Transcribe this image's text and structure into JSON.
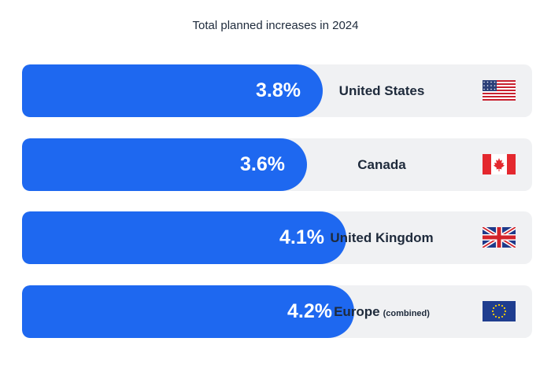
{
  "chart_data": {
    "type": "bar",
    "title": "Total planned increases in 2024",
    "categories": [
      "United States",
      "Canada",
      "United Kingdom",
      "Europe"
    ],
    "values": [
      3.8,
      3.6,
      4.1,
      4.2
    ],
    "value_labels": [
      "3.8%",
      "3.6%",
      "4.1%",
      "4.2%"
    ],
    "category_notes": [
      "",
      "",
      "",
      "(combined)"
    ],
    "flag_icons": [
      "us-flag-icon",
      "canada-flag-icon",
      "uk-flag-icon",
      "eu-flag-icon"
    ],
    "orientation": "horizontal",
    "xlabel": "",
    "ylabel": "",
    "grid": false,
    "legend": "none",
    "colors": {
      "bar": "#1e68f0",
      "track": "#f0f1f3",
      "value_text": "#ffffff",
      "label_text": "#1e2a3b"
    }
  }
}
